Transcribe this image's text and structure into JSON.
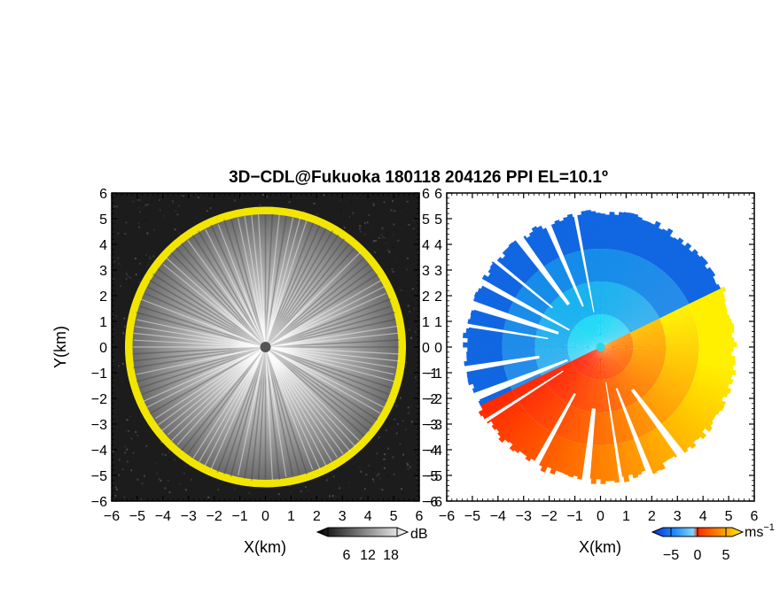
{
  "chart_data": {
    "type": "heatmap",
    "title": "3D−CDL@Fukuoka 180118 204126 PPI EL=10.1º",
    "panels": [
      {
        "quantity": "backscatter intensity",
        "xlabel": "X(km)",
        "ylabel": "Y(km)",
        "xlim": [
          -6,
          6
        ],
        "ylim": [
          -6,
          6
        ],
        "xticks": [
          "−6",
          "−5",
          "−4",
          "−3",
          "−2",
          "−1",
          "0",
          "1",
          "2",
          "3",
          "4",
          "5",
          "6"
        ],
        "yticks": [
          "6",
          "5",
          "4",
          "3",
          "2",
          "1",
          "0",
          "−1",
          "−2",
          "−3",
          "−4",
          "−5",
          "−6"
        ],
        "range_edge_km": 5.2,
        "edge_color": "#f2e600",
        "background_color": "#1c1c1c",
        "colorbar": {
          "unit": "dB",
          "ticks": [
            "6",
            "12",
            "18"
          ]
        }
      },
      {
        "quantity": "radial velocity",
        "xlabel": "X(km)",
        "ylabel": "",
        "xlim": [
          -6,
          6
        ],
        "ylim": [
          -6,
          6
        ],
        "xticks": [
          "−6",
          "−5",
          "−4",
          "−3",
          "−2",
          "−1",
          "0",
          "1",
          "2",
          "3",
          "4",
          "5",
          "6"
        ],
        "yticks": [
          "6",
          "5",
          "4",
          "3",
          "2",
          "1",
          "0",
          "−1",
          "−2",
          "−3",
          "−4",
          "−5",
          "−6"
        ],
        "range_edge_km": 5.2,
        "colorbar": {
          "unit": "ms",
          "unit_exponent": "−1",
          "ticks": [
            "−5",
            "0",
            "5"
          ]
        }
      }
    ]
  }
}
